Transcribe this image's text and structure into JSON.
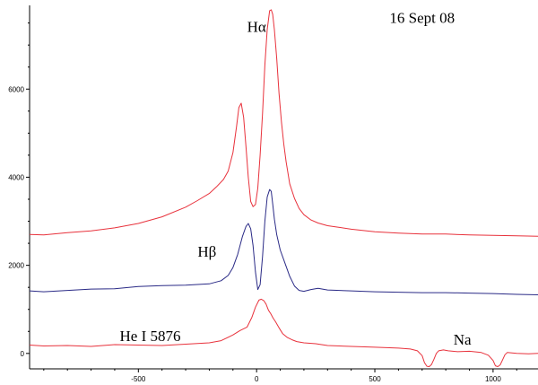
{
  "chart_data": {
    "type": "line",
    "title": "",
    "xlabel": "",
    "ylabel": "",
    "xlim": [
      -960,
      1190
    ],
    "ylim": [
      -350,
      7900
    ],
    "grid": false,
    "x_ticks": [
      -500,
      0,
      500,
      1000
    ],
    "x_tick_labels": [
      "-500",
      "0",
      "500",
      "1000"
    ],
    "y_ticks": [
      0,
      2000,
      4000,
      6000
    ],
    "y_tick_labels": [
      "0",
      "2000",
      "4000",
      "6000"
    ],
    "annotations": [
      {
        "id": "date",
        "text": "16 Sept 08",
        "x": 700,
        "y": 7500
      },
      {
        "id": "halpha",
        "text": "Hα",
        "x": 0,
        "y": 7300
      },
      {
        "id": "hbeta",
        "text": "Hβ",
        "x": -210,
        "y": 2200
      },
      {
        "id": "hei",
        "text": "He I 5876",
        "x": -450,
        "y": 280
      },
      {
        "id": "na",
        "text": "Na",
        "x": 870,
        "y": 200
      }
    ],
    "series": [
      {
        "color": "#e8323c",
        "x": [
          -960,
          -900,
          -800,
          -700,
          -600,
          -500,
          -400,
          -300,
          -250,
          -200,
          -170,
          -140,
          -120,
          -100,
          -85,
          -75,
          -65,
          -55,
          -45,
          -35,
          -25,
          -15,
          -5,
          5,
          15,
          25,
          35,
          45,
          55,
          62,
          68,
          75,
          85,
          95,
          105,
          115,
          125,
          140,
          160,
          180,
          200,
          230,
          260,
          300,
          350,
          400,
          500,
          600,
          700,
          800,
          900,
          1000,
          1100,
          1190
        ],
        "y": [
          2700,
          2690,
          2740,
          2780,
          2850,
          2950,
          3100,
          3320,
          3470,
          3630,
          3780,
          3950,
          4140,
          4560,
          5150,
          5580,
          5680,
          5360,
          4700,
          4000,
          3450,
          3330,
          3380,
          3750,
          4500,
          5450,
          6550,
          7350,
          7780,
          7800,
          7700,
          7350,
          6700,
          5900,
          5250,
          4750,
          4350,
          3850,
          3520,
          3290,
          3150,
          3030,
          2960,
          2900,
          2860,
          2820,
          2760,
          2730,
          2710,
          2710,
          2690,
          2680,
          2670,
          2660
        ]
      },
      {
        "color": "#2a2a86",
        "x": [
          -960,
          -900,
          -800,
          -700,
          -600,
          -500,
          -400,
          -300,
          -200,
          -150,
          -120,
          -100,
          -80,
          -60,
          -45,
          -35,
          -25,
          -15,
          -5,
          5,
          15,
          25,
          35,
          45,
          55,
          62,
          68,
          75,
          85,
          100,
          120,
          140,
          160,
          180,
          200,
          230,
          260,
          300,
          400,
          500,
          600,
          700,
          800,
          900,
          1000,
          1100,
          1190
        ],
        "y": [
          1420,
          1400,
          1430,
          1460,
          1470,
          1520,
          1540,
          1550,
          1580,
          1650,
          1770,
          1950,
          2250,
          2650,
          2880,
          2950,
          2830,
          2450,
          1850,
          1450,
          1560,
          2200,
          3000,
          3550,
          3720,
          3680,
          3400,
          3050,
          2700,
          2350,
          2050,
          1750,
          1530,
          1430,
          1410,
          1450,
          1480,
          1440,
          1420,
          1400,
          1390,
          1380,
          1380,
          1370,
          1360,
          1340,
          1330
        ]
      },
      {
        "color": "#e8323c",
        "x": [
          -960,
          -900,
          -800,
          -700,
          -600,
          -500,
          -400,
          -300,
          -200,
          -150,
          -100,
          -70,
          -40,
          -20,
          -5,
          10,
          20,
          30,
          40,
          50,
          60,
          70,
          80,
          95,
          110,
          130,
          150,
          170,
          200,
          250,
          300,
          400,
          500,
          600,
          650,
          680,
          700,
          710,
          720,
          730,
          740,
          750,
          760,
          770,
          790,
          810,
          850,
          900,
          950,
          980,
          1000,
          1010,
          1020,
          1030,
          1040,
          1050,
          1060,
          1080,
          1100,
          1150,
          1190
        ],
        "y": [
          190,
          170,
          180,
          160,
          200,
          190,
          180,
          210,
          240,
          290,
          420,
          520,
          600,
          820,
          1050,
          1210,
          1230,
          1200,
          1120,
          980,
          900,
          800,
          720,
          580,
          450,
          360,
          310,
          270,
          240,
          220,
          180,
          160,
          140,
          120,
          100,
          60,
          -50,
          -210,
          -290,
          -300,
          -250,
          -130,
          0,
          60,
          80,
          60,
          40,
          50,
          20,
          -40,
          -160,
          -280,
          -300,
          -260,
          -150,
          -30,
          20,
          10,
          0,
          -10,
          0
        ]
      }
    ]
  }
}
